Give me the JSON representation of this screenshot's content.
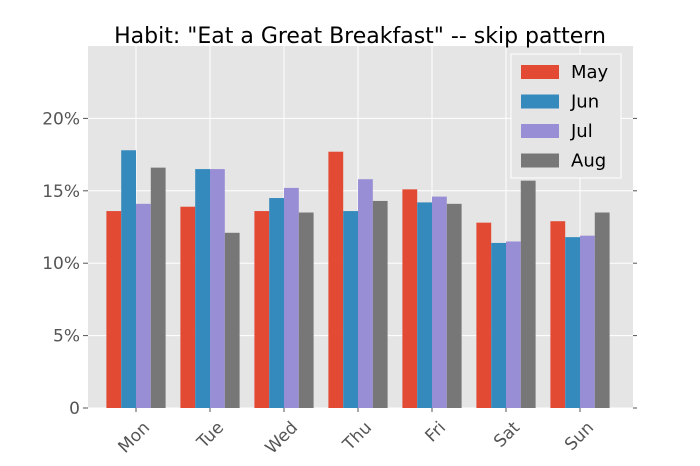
{
  "chart_data": {
    "type": "bar",
    "title": "Habit: \"Eat a Great Breakfast\" -- skip pattern",
    "xlabel": "",
    "ylabel": "",
    "categories": [
      "Mon",
      "Tue",
      "Wed",
      "Thu",
      "Fri",
      "Sat",
      "Sun"
    ],
    "series": [
      {
        "name": "May",
        "color": "#E24A33",
        "values": [
          13.6,
          13.9,
          13.6,
          17.7,
          15.1,
          12.8,
          12.9
        ]
      },
      {
        "name": "Jun",
        "color": "#348ABD",
        "values": [
          17.8,
          16.5,
          14.5,
          13.6,
          14.2,
          11.4,
          11.8
        ]
      },
      {
        "name": "Jul",
        "color": "#988ED5",
        "values": [
          14.1,
          16.5,
          15.2,
          15.8,
          14.6,
          11.5,
          11.9
        ]
      },
      {
        "name": "Aug",
        "color": "#777777",
        "values": [
          16.6,
          12.1,
          13.5,
          14.3,
          14.1,
          15.7,
          13.5
        ]
      }
    ],
    "ylim": [
      0,
      25
    ],
    "yticks": [
      0,
      5,
      10,
      15,
      20
    ],
    "ytick_labels": [
      "0",
      "5%",
      "10%",
      "15%",
      "20%"
    ],
    "grid": true,
    "legend_position": "top-right",
    "background": "#E5E5E5",
    "grid_color": "#FFFFFF"
  }
}
